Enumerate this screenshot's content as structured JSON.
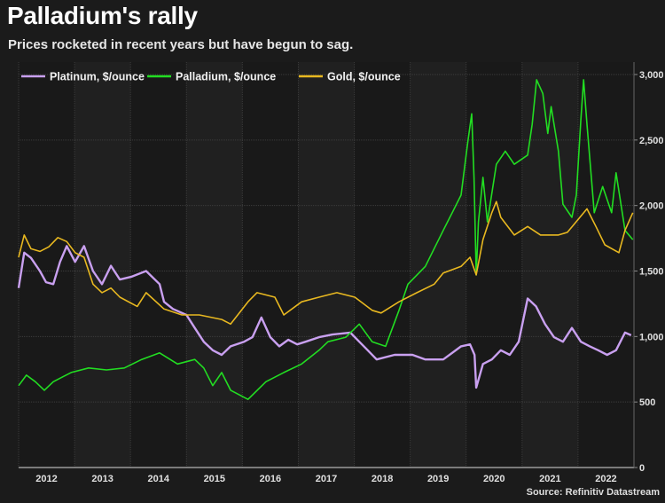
{
  "header": {
    "title": "Palladium's rally",
    "subtitle": "Prices rocketed in recent years but have begun to sag."
  },
  "source": "Source: Refinitiv Datastream",
  "chart_data": {
    "type": "line",
    "title": "Palladium's rally",
    "subtitle": "Prices rocketed in recent years but have begun to sag.",
    "xlabel": "",
    "ylabel": "",
    "x_ticks": [
      "2012",
      "2013",
      "2014",
      "2015",
      "2016",
      "2017",
      "2018",
      "2019",
      "2020",
      "2021",
      "2022"
    ],
    "y_ticks": [
      0,
      500,
      1000,
      1500,
      2000,
      2500,
      3000
    ],
    "y_tick_labels": [
      "0",
      "500",
      "1,000",
      "1,500",
      "2,000",
      "2,500",
      "3,000"
    ],
    "xlim": [
      2012,
      2023
    ],
    "ylim": [
      0,
      3000
    ],
    "y_axis_side": "right",
    "grid": true,
    "legend_position": "top-left",
    "series": [
      {
        "name": "Platinum, $/ounce",
        "color": "#c9a0f0",
        "points": [
          [
            2012.0,
            1370
          ],
          [
            2012.1,
            1640
          ],
          [
            2012.22,
            1600
          ],
          [
            2012.38,
            1500
          ],
          [
            2012.49,
            1415
          ],
          [
            2012.62,
            1400
          ],
          [
            2012.74,
            1570
          ],
          [
            2012.86,
            1690
          ],
          [
            2013.01,
            1570
          ],
          [
            2013.17,
            1690
          ],
          [
            2013.33,
            1500
          ],
          [
            2013.49,
            1400
          ],
          [
            2013.65,
            1540
          ],
          [
            2013.81,
            1435
          ],
          [
            2014.01,
            1455
          ],
          [
            2014.28,
            1500
          ],
          [
            2014.52,
            1400
          ],
          [
            2014.6,
            1265
          ],
          [
            2014.76,
            1210
          ],
          [
            2015.0,
            1165
          ],
          [
            2015.15,
            1065
          ],
          [
            2015.31,
            960
          ],
          [
            2015.47,
            895
          ],
          [
            2015.63,
            860
          ],
          [
            2015.79,
            925
          ],
          [
            2016.03,
            960
          ],
          [
            2016.18,
            995
          ],
          [
            2016.34,
            1145
          ],
          [
            2016.5,
            995
          ],
          [
            2016.66,
            925
          ],
          [
            2016.82,
            975
          ],
          [
            2016.98,
            940
          ],
          [
            2017.13,
            960
          ],
          [
            2017.37,
            995
          ],
          [
            2017.61,
            1015
          ],
          [
            2017.93,
            1030
          ],
          [
            2018.09,
            960
          ],
          [
            2018.24,
            895
          ],
          [
            2018.4,
            825
          ],
          [
            2018.72,
            860
          ],
          [
            2019.04,
            860
          ],
          [
            2019.27,
            825
          ],
          [
            2019.59,
            825
          ],
          [
            2019.91,
            925
          ],
          [
            2020.07,
            940
          ],
          [
            2020.15,
            860
          ],
          [
            2020.18,
            610
          ],
          [
            2020.3,
            790
          ],
          [
            2020.46,
            825
          ],
          [
            2020.62,
            895
          ],
          [
            2020.78,
            860
          ],
          [
            2020.94,
            960
          ],
          [
            2021.1,
            1290
          ],
          [
            2021.25,
            1230
          ],
          [
            2021.41,
            1095
          ],
          [
            2021.57,
            995
          ],
          [
            2021.73,
            960
          ],
          [
            2021.89,
            1065
          ],
          [
            2022.05,
            960
          ],
          [
            2022.21,
            925
          ],
          [
            2022.36,
            895
          ],
          [
            2022.52,
            860
          ],
          [
            2022.68,
            895
          ],
          [
            2022.84,
            1030
          ],
          [
            2022.95,
            1010
          ]
        ]
      },
      {
        "name": "Palladium, $/ounce",
        "color": "#22dd22",
        "points": [
          [
            2012.0,
            625
          ],
          [
            2012.14,
            705
          ],
          [
            2012.3,
            655
          ],
          [
            2012.46,
            590
          ],
          [
            2012.62,
            655
          ],
          [
            2012.78,
            690
          ],
          [
            2012.94,
            725
          ],
          [
            2013.25,
            760
          ],
          [
            2013.57,
            745
          ],
          [
            2013.89,
            760
          ],
          [
            2014.2,
            825
          ],
          [
            2014.52,
            875
          ],
          [
            2014.84,
            790
          ],
          [
            2015.15,
            825
          ],
          [
            2015.31,
            760
          ],
          [
            2015.47,
            625
          ],
          [
            2015.63,
            725
          ],
          [
            2015.79,
            590
          ],
          [
            2016.1,
            520
          ],
          [
            2016.42,
            655
          ],
          [
            2016.74,
            725
          ],
          [
            2017.06,
            790
          ],
          [
            2017.37,
            895
          ],
          [
            2017.53,
            960
          ],
          [
            2017.85,
            995
          ],
          [
            2018.09,
            1095
          ],
          [
            2018.32,
            960
          ],
          [
            2018.56,
            925
          ],
          [
            2018.8,
            1200
          ],
          [
            2018.96,
            1400
          ],
          [
            2019.27,
            1535
          ],
          [
            2019.59,
            1810
          ],
          [
            2019.75,
            1945
          ],
          [
            2019.91,
            2080
          ],
          [
            2020.03,
            2485
          ],
          [
            2020.1,
            2700
          ],
          [
            2020.14,
            2215
          ],
          [
            2020.18,
            1470
          ],
          [
            2020.22,
            1875
          ],
          [
            2020.3,
            2215
          ],
          [
            2020.38,
            1875
          ],
          [
            2020.54,
            2315
          ],
          [
            2020.7,
            2415
          ],
          [
            2020.86,
            2315
          ],
          [
            2021.1,
            2385
          ],
          [
            2021.18,
            2620
          ],
          [
            2021.26,
            2960
          ],
          [
            2021.37,
            2855
          ],
          [
            2021.46,
            2550
          ],
          [
            2021.52,
            2755
          ],
          [
            2021.65,
            2415
          ],
          [
            2021.73,
            2010
          ],
          [
            2021.89,
            1910
          ],
          [
            2021.97,
            2080
          ],
          [
            2022.05,
            2655
          ],
          [
            2022.1,
            2960
          ],
          [
            2022.16,
            2620
          ],
          [
            2022.29,
            1945
          ],
          [
            2022.44,
            2145
          ],
          [
            2022.6,
            1945
          ],
          [
            2022.68,
            2250
          ],
          [
            2022.84,
            1810
          ],
          [
            2022.98,
            1740
          ]
        ]
      },
      {
        "name": "Gold, $/ounce",
        "color": "#e8b820",
        "points": [
          [
            2012.0,
            1605
          ],
          [
            2012.1,
            1775
          ],
          [
            2012.22,
            1670
          ],
          [
            2012.38,
            1650
          ],
          [
            2012.54,
            1685
          ],
          [
            2012.7,
            1755
          ],
          [
            2012.86,
            1725
          ],
          [
            2013.01,
            1640
          ],
          [
            2013.17,
            1605
          ],
          [
            2013.33,
            1400
          ],
          [
            2013.49,
            1335
          ],
          [
            2013.65,
            1370
          ],
          [
            2013.81,
            1300
          ],
          [
            2014.12,
            1230
          ],
          [
            2014.28,
            1335
          ],
          [
            2014.6,
            1210
          ],
          [
            2014.92,
            1165
          ],
          [
            2015.23,
            1165
          ],
          [
            2015.63,
            1130
          ],
          [
            2015.79,
            1095
          ],
          [
            2016.1,
            1265
          ],
          [
            2016.26,
            1335
          ],
          [
            2016.58,
            1300
          ],
          [
            2016.74,
            1165
          ],
          [
            2017.06,
            1265
          ],
          [
            2017.37,
            1300
          ],
          [
            2017.69,
            1335
          ],
          [
            2018.01,
            1300
          ],
          [
            2018.32,
            1200
          ],
          [
            2018.48,
            1180
          ],
          [
            2018.8,
            1265
          ],
          [
            2019.12,
            1335
          ],
          [
            2019.43,
            1400
          ],
          [
            2019.59,
            1485
          ],
          [
            2019.91,
            1535
          ],
          [
            2020.07,
            1605
          ],
          [
            2020.18,
            1470
          ],
          [
            2020.3,
            1740
          ],
          [
            2020.46,
            1945
          ],
          [
            2020.54,
            2030
          ],
          [
            2020.62,
            1910
          ],
          [
            2020.86,
            1775
          ],
          [
            2021.1,
            1840
          ],
          [
            2021.33,
            1775
          ],
          [
            2021.65,
            1775
          ],
          [
            2021.81,
            1795
          ],
          [
            2022.16,
            1975
          ],
          [
            2022.32,
            1840
          ],
          [
            2022.48,
            1700
          ],
          [
            2022.73,
            1640
          ],
          [
            2022.84,
            1810
          ],
          [
            2022.98,
            1945
          ]
        ]
      }
    ]
  }
}
